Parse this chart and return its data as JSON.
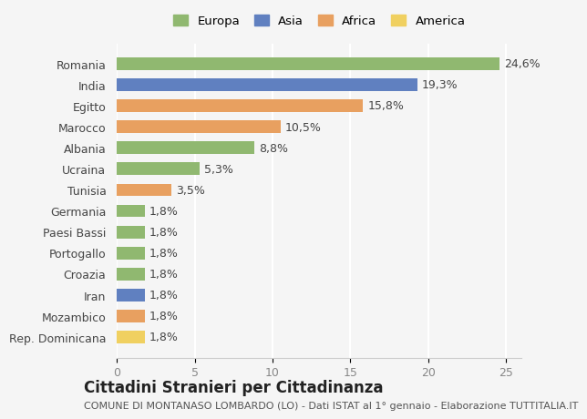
{
  "categories": [
    "Rep. Dominicana",
    "Mozambico",
    "Iran",
    "Croazia",
    "Portogallo",
    "Paesi Bassi",
    "Germania",
    "Tunisia",
    "Ucraina",
    "Albania",
    "Marocco",
    "Egitto",
    "India",
    "Romania"
  ],
  "values": [
    1.8,
    1.8,
    1.8,
    1.8,
    1.8,
    1.8,
    1.8,
    3.5,
    5.3,
    8.8,
    10.5,
    15.8,
    19.3,
    24.6
  ],
  "labels": [
    "1,8%",
    "1,8%",
    "1,8%",
    "1,8%",
    "1,8%",
    "1,8%",
    "1,8%",
    "3,5%",
    "5,3%",
    "8,8%",
    "10,5%",
    "15,8%",
    "19,3%",
    "24,6%"
  ],
  "colors": [
    "#f0d060",
    "#e8a060",
    "#6080c0",
    "#90b870",
    "#90b870",
    "#90b870",
    "#90b870",
    "#e8a060",
    "#90b870",
    "#90b870",
    "#e8a060",
    "#e8a060",
    "#6080c0",
    "#90b870"
  ],
  "continent_colors": {
    "Europa": "#90b870",
    "Asia": "#6080c0",
    "Africa": "#e8a060",
    "America": "#f0d060"
  },
  "legend_labels": [
    "Europa",
    "Asia",
    "Africa",
    "America"
  ],
  "xlim": [
    0,
    26
  ],
  "xticks": [
    0,
    5,
    10,
    15,
    20,
    25
  ],
  "title": "Cittadini Stranieri per Cittadinanza",
  "subtitle": "COMUNE DI MONTANASO LOMBARDO (LO) - Dati ISTAT al 1° gennaio - Elaborazione TUTTITALIA.IT",
  "background_color": "#f5f5f5",
  "bar_height": 0.6,
  "label_fontsize": 9,
  "tick_fontsize": 9,
  "title_fontsize": 12,
  "subtitle_fontsize": 8
}
